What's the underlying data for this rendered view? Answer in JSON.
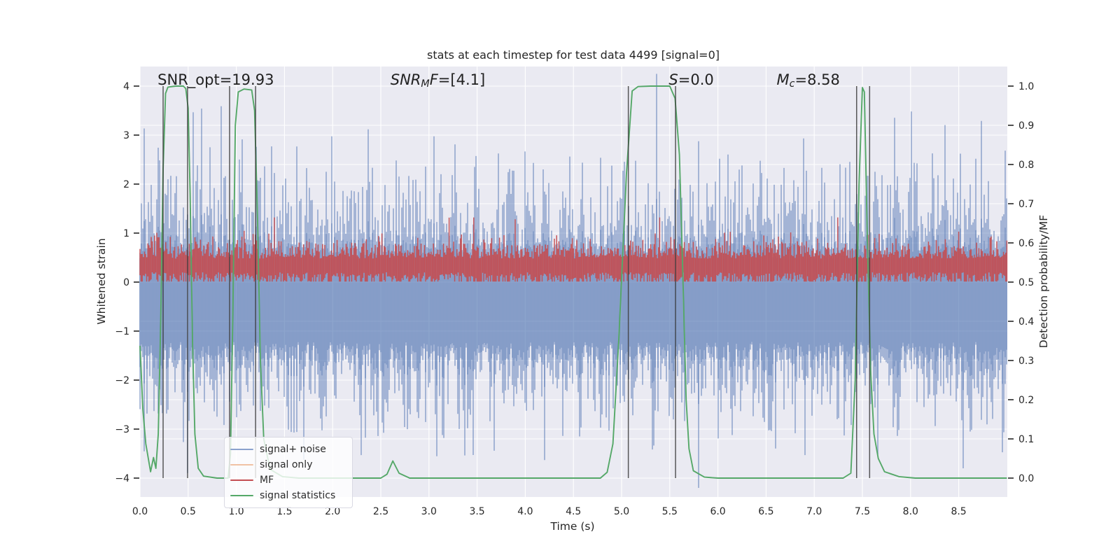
{
  "chart_data": {
    "type": "line",
    "title": "stats at each timestep for test data 4499 [signal=0]",
    "xlabel": "Time (s)",
    "ylabel_left": "Whitened strain",
    "ylabel_right": "Detection probability/MF",
    "xlim": [
      0.0,
      9.0
    ],
    "ylim_left": [
      -4.4,
      4.4
    ],
    "ylim_right": [
      0.0,
      1.0
    ],
    "grid": true,
    "plot_background": "#eaeaf2",
    "grid_color": "#ffffff",
    "xticks": [
      0.0,
      0.5,
      1.0,
      1.5,
      2.0,
      2.5,
      3.0,
      3.5,
      4.0,
      4.5,
      5.0,
      5.5,
      6.0,
      6.5,
      7.0,
      7.5,
      8.0,
      8.5
    ],
    "yticks_left": [
      -4,
      -3,
      -2,
      -1,
      0,
      1,
      2,
      3,
      4
    ],
    "yticks_right": [
      0.0,
      0.1,
      0.2,
      0.3,
      0.4,
      0.5,
      0.6,
      0.7,
      0.8,
      0.9,
      1.0
    ],
    "annotations": [
      {
        "name": "snr-opt",
        "x": 0.183,
        "segments": [
          {
            "text": "SNR_opt=19.93",
            "italic": false
          }
        ]
      },
      {
        "name": "snr-mf",
        "x": 2.6,
        "segments": [
          {
            "text": "SNR",
            "italic": true
          },
          {
            "text": "M",
            "italic": true,
            "sub": true
          },
          {
            "text": "F",
            "italic": true
          },
          {
            "text": "=[4.1]",
            "italic": false
          }
        ]
      },
      {
        "name": "s-stat",
        "x": 5.49,
        "segments": [
          {
            "text": "S",
            "italic": true
          },
          {
            "text": "=0.0",
            "italic": false
          }
        ]
      },
      {
        "name": "chirp-mass",
        "x": 6.61,
        "segments": [
          {
            "text": "M",
            "italic": true
          },
          {
            "text": "c",
            "italic": true,
            "sub": true
          },
          {
            "text": "=8.58",
            "italic": false
          }
        ]
      }
    ],
    "vlines": {
      "color": "#3d3d3d",
      "opacity": 0.85,
      "ymin": -4.0,
      "ymax": 4.0,
      "times": [
        0.24,
        0.494,
        0.93,
        1.2,
        5.07,
        5.56,
        7.44,
        7.575
      ]
    },
    "series": [
      {
        "name": "signal+ noise",
        "color": "#4c72b0",
        "render": "noise_band",
        "seed": 20499,
        "mean": -0.42,
        "hi_base": 1.0,
        "hi_spread": 1.0,
        "lo_base": 0.85,
        "lo_spread": 0.9,
        "core_hi": 0.9,
        "core_hi_spread": 0.3,
        "core_lo": 0.8,
        "core_lo_spread": 0.35,
        "clip_hi": 4.25,
        "clip_lo": -4.2,
        "outlier_p": 0.012,
        "outlier_add": 0.7
      },
      {
        "name": "signal only",
        "color": "#dd8452",
        "render": "none"
      },
      {
        "name": "MF",
        "color": "#c44e52",
        "render": "noise_band_pos",
        "seed": 771,
        "mean": 0.34,
        "hi_base": 0.14,
        "hi_spread": 0.2,
        "lo_base": 0.14,
        "lo_spread": 0.18,
        "floor": 0.012,
        "spike_p": 0.004,
        "spike_add": 0.55,
        "clip_hi": 1.32
      },
      {
        "name": "signal statistics",
        "color": "#55a868",
        "render": "keypoints",
        "points": [
          [
            0,
            -1.3
          ],
          [
            0.03,
            -2.6
          ],
          [
            0.06,
            -3.3
          ],
          [
            0.11,
            -3.87
          ],
          [
            0.14,
            -3.58
          ],
          [
            0.165,
            -3.8
          ],
          [
            0.19,
            -3.1
          ],
          [
            0.215,
            -0.8
          ],
          [
            0.24,
            2.3
          ],
          [
            0.265,
            3.85
          ],
          [
            0.29,
            3.98
          ],
          [
            0.37,
            4
          ],
          [
            0.45,
            4
          ],
          [
            0.475,
            3.95
          ],
          [
            0.5,
            3.55
          ],
          [
            0.52,
            1.8
          ],
          [
            0.545,
            -1.2
          ],
          [
            0.57,
            -3.1
          ],
          [
            0.605,
            -3.8
          ],
          [
            0.66,
            -3.96
          ],
          [
            0.8,
            -4
          ],
          [
            0.915,
            -4
          ],
          [
            0.94,
            -3.5
          ],
          [
            0.965,
            -0.5
          ],
          [
            0.99,
            3.2
          ],
          [
            1.02,
            3.88
          ],
          [
            1.08,
            3.94
          ],
          [
            1.16,
            3.92
          ],
          [
            1.19,
            3.5
          ],
          [
            1.22,
            1.3
          ],
          [
            1.25,
            -1.6
          ],
          [
            1.285,
            -3.2
          ],
          [
            1.35,
            -3.82
          ],
          [
            1.48,
            -3.97
          ],
          [
            1.65,
            -4
          ],
          [
            2.5,
            -4
          ],
          [
            2.565,
            -3.92
          ],
          [
            2.625,
            -3.65
          ],
          [
            2.69,
            -3.9
          ],
          [
            2.8,
            -4
          ],
          [
            4.78,
            -4
          ],
          [
            4.85,
            -3.88
          ],
          [
            4.91,
            -3.3
          ],
          [
            4.97,
            -1.2
          ],
          [
            5.05,
            2.2
          ],
          [
            5.11,
            3.9
          ],
          [
            5.17,
            3.99
          ],
          [
            5.3,
            4
          ],
          [
            5.5,
            4
          ],
          [
            5.555,
            3.75
          ],
          [
            5.6,
            2.6
          ],
          [
            5.635,
            0.2
          ],
          [
            5.67,
            -2.4
          ],
          [
            5.7,
            -3.4
          ],
          [
            5.745,
            -3.85
          ],
          [
            5.86,
            -3.98
          ],
          [
            6.0,
            -4
          ],
          [
            7.3,
            -4
          ],
          [
            7.38,
            -3.9
          ],
          [
            7.425,
            -2.0
          ],
          [
            7.465,
            2.0
          ],
          [
            7.5,
            3.97
          ],
          [
            7.52,
            3.88
          ],
          [
            7.55,
            1.0
          ],
          [
            7.585,
            -1.8
          ],
          [
            7.62,
            -3.1
          ],
          [
            7.665,
            -3.6
          ],
          [
            7.73,
            -3.87
          ],
          [
            7.88,
            -3.97
          ],
          [
            8.05,
            -4
          ],
          [
            9.0,
            -4
          ]
        ]
      }
    ],
    "legend": {
      "items": [
        {
          "label": "signal+ noise",
          "color": "#8ba2cd"
        },
        {
          "label": "signal only",
          "color": "#f0c2a4"
        },
        {
          "label": "MF",
          "color": "#c44e52"
        },
        {
          "label": "signal statistics",
          "color": "#55a868"
        }
      ]
    }
  }
}
